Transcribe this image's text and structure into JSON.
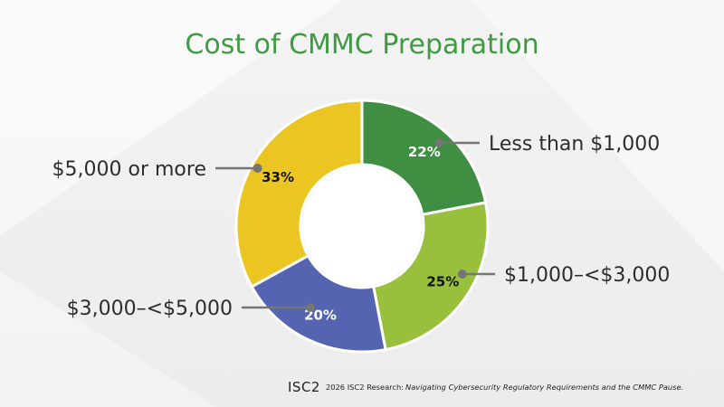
{
  "slide": {
    "title": "Cost of CMMC Preparation",
    "footer": {
      "logo": "ISC2",
      "source_prefix": "2026 ISC2 Research:",
      "source_title": "Navigating Cybersecurity Regulatory Requirements and the CMMC Pause."
    }
  },
  "chart_data": {
    "type": "pie",
    "title": "Cost of CMMC Preparation",
    "donut": true,
    "start": "12 o'clock",
    "direction": "clockwise",
    "slices": [
      {
        "label": "Less than $1,000",
        "value": 22,
        "display": "22%",
        "color": "#3f8e42",
        "label_color": "#ffffff",
        "callout_side": "right"
      },
      {
        "label": "$1,000–<$3,000",
        "value": 25,
        "display": "25%",
        "color": "#98c03c",
        "label_color": "#111111",
        "callout_side": "right"
      },
      {
        "label": "$3,000–<$5,000",
        "value": 20,
        "display": "20%",
        "color": "#5564b0",
        "label_color": "#ffffff",
        "callout_side": "left"
      },
      {
        "label": "$5,000 or more",
        "value": 33,
        "display": "33%",
        "color": "#ebc522",
        "label_color": "#111111",
        "callout_side": "left"
      }
    ],
    "callout_color": "#757575"
  }
}
